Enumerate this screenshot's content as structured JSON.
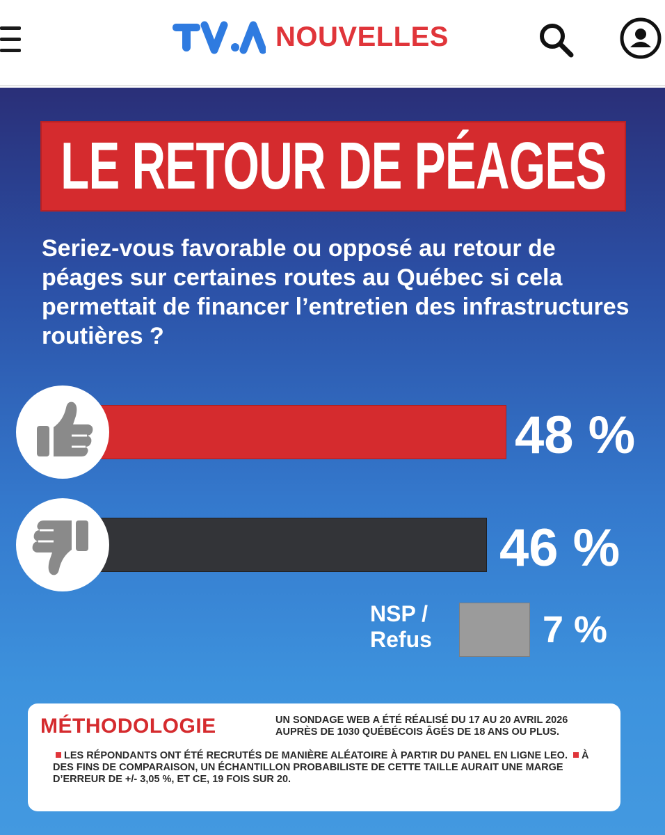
{
  "header": {
    "brand_mark": "TVA",
    "brand_name": "NOUVELLES",
    "brand_colors": {
      "mark": "#2f7be0",
      "name": "#e0353a"
    },
    "icons": [
      "menu-icon",
      "search-icon",
      "user-icon"
    ]
  },
  "infographic": {
    "headline": "LE RETOUR DE PÉAGES",
    "question": "Seriez-vous favorable ou opposé au retour de péages sur certaines routes au Québec si cela permettait de financer l’entretien des infrastructures routières ?",
    "results": [
      {
        "name": "favorable",
        "icon": "thumbs-up-icon",
        "label": "48 %",
        "value": 48,
        "color": "#d52b2e"
      },
      {
        "name": "opposé",
        "icon": "thumbs-down-icon",
        "label": "46 %",
        "value": 46,
        "color": "#333438"
      },
      {
        "name": "nsp",
        "label_line1": "NSP /",
        "label_line2": "Refus",
        "label": "7 %",
        "value": 7,
        "color": "#9b9b9b"
      }
    ],
    "methodology": {
      "title": "MÉTHODOLOGIE",
      "text_part1": "Un sondage Web a été réalisé du 17 au 20 avril 2026 auprès de 1030 Québécois âgés de 18 ans ou plus.",
      "text_part2": "Les répondants ont été recrutés de manière aléatoire à partir du panel en ligne LEO.",
      "text_part3": "À des fins de comparaison, un échantillon probabiliste de cette taille aurait une marge d’erreur de +/- 3,05 %, et ce, 19 fois sur 20."
    }
  }
}
